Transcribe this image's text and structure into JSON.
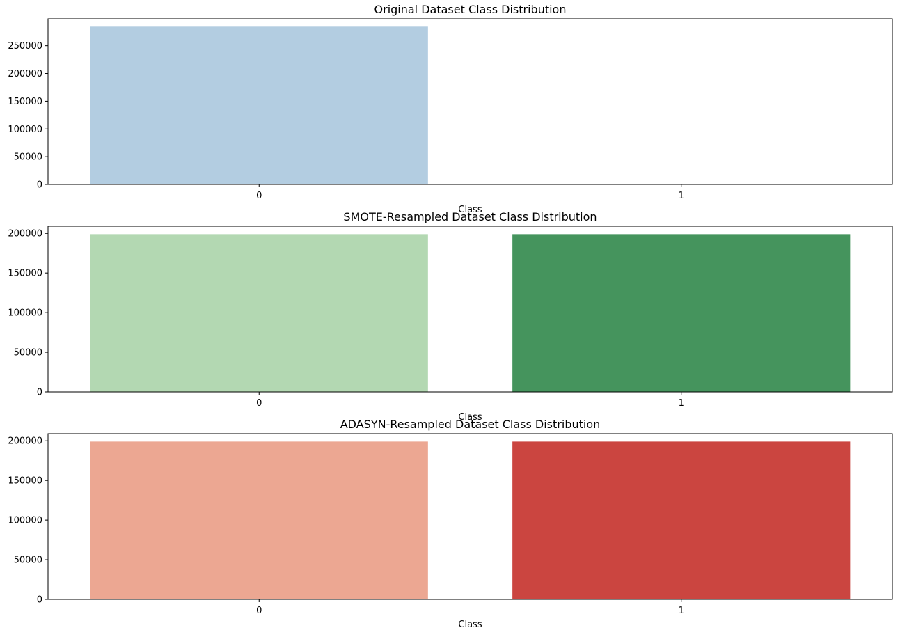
{
  "chart_data": [
    {
      "type": "bar",
      "title": "Original Dataset Class Distribution",
      "xlabel": "Class",
      "ylabel": "",
      "categories": [
        "0",
        "1"
      ],
      "values": [
        284315,
        492
      ],
      "colors": [
        "#b3cde1",
        "#2c7ab6"
      ],
      "ylim": [
        0,
        298500
      ],
      "yticks": [
        0,
        50000,
        100000,
        150000,
        200000,
        250000
      ]
    },
    {
      "type": "bar",
      "title": "SMOTE-Resampled Dataset Class Distribution",
      "xlabel": "Class",
      "ylabel": "",
      "categories": [
        "0",
        "1"
      ],
      "values": [
        199020,
        199020
      ],
      "colors": [
        "#b3d8b2",
        "#45945d"
      ],
      "ylim": [
        0,
        209000
      ],
      "yticks": [
        0,
        50000,
        100000,
        150000,
        200000
      ]
    },
    {
      "type": "bar",
      "title": "ADASYN-Resampled Dataset Class Distribution",
      "xlabel": "Class",
      "ylabel": "",
      "categories": [
        "0",
        "1"
      ],
      "values": [
        199020,
        199000
      ],
      "colors": [
        "#eca792",
        "#cb4540"
      ],
      "ylim": [
        0,
        209000
      ],
      "yticks": [
        0,
        50000,
        100000,
        150000,
        200000
      ]
    }
  ]
}
